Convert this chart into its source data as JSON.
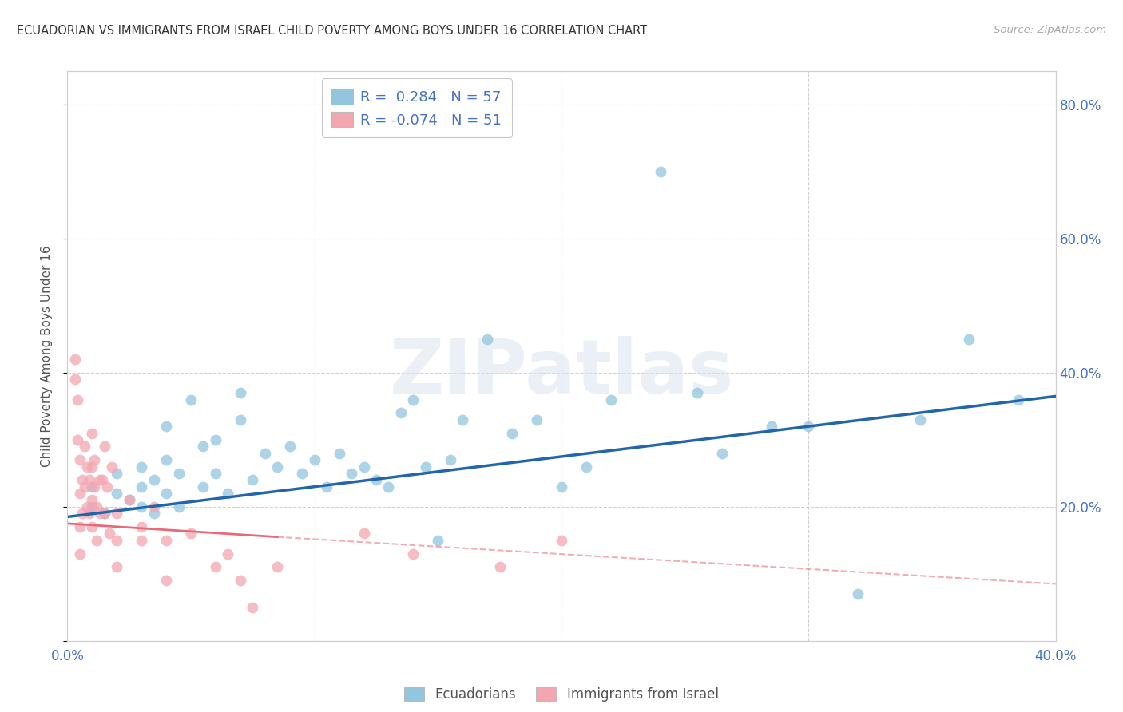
{
  "title": "ECUADORIAN VS IMMIGRANTS FROM ISRAEL CHILD POVERTY AMONG BOYS UNDER 16 CORRELATION CHART",
  "source": "Source: ZipAtlas.com",
  "ylabel": "Child Poverty Among Boys Under 16",
  "xlim": [
    0.0,
    0.4
  ],
  "ylim": [
    0.0,
    0.85
  ],
  "yticks": [
    0.0,
    0.2,
    0.4,
    0.6,
    0.8
  ],
  "xticks": [
    0.0,
    0.1,
    0.2,
    0.3,
    0.4
  ],
  "xtick_labels": [
    "0.0%",
    "",
    "",
    "",
    "40.0%"
  ],
  "ytick_labels_right": [
    "",
    "20.0%",
    "40.0%",
    "60.0%",
    "80.0%"
  ],
  "blue_R": 0.284,
  "blue_N": 57,
  "pink_R": -0.074,
  "pink_N": 51,
  "blue_color": "#92c5de",
  "pink_color": "#f4a6b0",
  "trendline_blue_color": "#2166ac",
  "trendline_pink_color": "#e8697a",
  "watermark_text": "ZIPatlas",
  "legend_label_blue": "Ecuadorians",
  "legend_label_pink": "Immigrants from Israel",
  "blue_trend_x0": 0.0,
  "blue_trend_y0": 0.185,
  "blue_trend_x1": 0.4,
  "blue_trend_y1": 0.365,
  "pink_trend_solid_x0": 0.0,
  "pink_trend_solid_y0": 0.175,
  "pink_trend_solid_x1": 0.085,
  "pink_trend_solid_y1": 0.155,
  "pink_trend_dash_x0": 0.085,
  "pink_trend_dash_y0": 0.155,
  "pink_trend_dash_x1": 0.4,
  "pink_trend_dash_y1": 0.085,
  "blue_x": [
    0.01,
    0.01,
    0.015,
    0.02,
    0.02,
    0.025,
    0.03,
    0.03,
    0.03,
    0.035,
    0.035,
    0.04,
    0.04,
    0.04,
    0.045,
    0.045,
    0.05,
    0.055,
    0.055,
    0.06,
    0.06,
    0.065,
    0.07,
    0.07,
    0.075,
    0.08,
    0.085,
    0.09,
    0.095,
    0.1,
    0.105,
    0.11,
    0.115,
    0.12,
    0.125,
    0.13,
    0.135,
    0.14,
    0.145,
    0.15,
    0.155,
    0.16,
    0.17,
    0.18,
    0.19,
    0.2,
    0.21,
    0.22,
    0.24,
    0.255,
    0.265,
    0.285,
    0.3,
    0.32,
    0.345,
    0.365,
    0.385
  ],
  "blue_y": [
    0.2,
    0.23,
    0.19,
    0.22,
    0.25,
    0.21,
    0.2,
    0.23,
    0.26,
    0.19,
    0.24,
    0.27,
    0.32,
    0.22,
    0.25,
    0.2,
    0.36,
    0.29,
    0.23,
    0.3,
    0.25,
    0.22,
    0.37,
    0.33,
    0.24,
    0.28,
    0.26,
    0.29,
    0.25,
    0.27,
    0.23,
    0.28,
    0.25,
    0.26,
    0.24,
    0.23,
    0.34,
    0.36,
    0.26,
    0.15,
    0.27,
    0.33,
    0.45,
    0.31,
    0.33,
    0.23,
    0.26,
    0.36,
    0.7,
    0.37,
    0.28,
    0.32,
    0.32,
    0.07,
    0.33,
    0.45,
    0.36
  ],
  "pink_x": [
    0.003,
    0.003,
    0.004,
    0.004,
    0.005,
    0.005,
    0.005,
    0.005,
    0.006,
    0.006,
    0.007,
    0.007,
    0.008,
    0.008,
    0.009,
    0.009,
    0.01,
    0.01,
    0.01,
    0.01,
    0.011,
    0.011,
    0.012,
    0.012,
    0.013,
    0.013,
    0.014,
    0.015,
    0.015,
    0.016,
    0.017,
    0.018,
    0.02,
    0.02,
    0.02,
    0.025,
    0.03,
    0.03,
    0.035,
    0.04,
    0.04,
    0.05,
    0.06,
    0.065,
    0.07,
    0.075,
    0.085,
    0.12,
    0.14,
    0.175,
    0.2
  ],
  "pink_y": [
    0.42,
    0.39,
    0.36,
    0.3,
    0.27,
    0.22,
    0.17,
    0.13,
    0.24,
    0.19,
    0.29,
    0.23,
    0.26,
    0.2,
    0.24,
    0.19,
    0.31,
    0.26,
    0.21,
    0.17,
    0.27,
    0.23,
    0.2,
    0.15,
    0.24,
    0.19,
    0.24,
    0.29,
    0.19,
    0.23,
    0.16,
    0.26,
    0.19,
    0.15,
    0.11,
    0.21,
    0.17,
    0.15,
    0.2,
    0.15,
    0.09,
    0.16,
    0.11,
    0.13,
    0.09,
    0.05,
    0.11,
    0.16,
    0.13,
    0.11,
    0.15
  ]
}
